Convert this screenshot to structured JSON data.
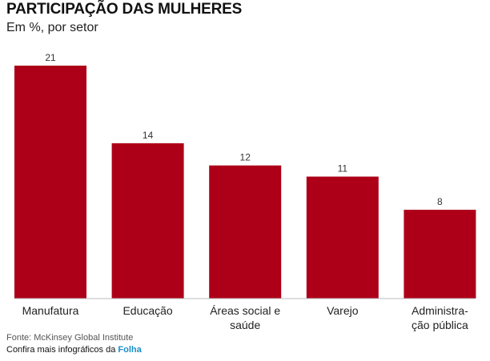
{
  "header": {
    "title": "PARTICIPAÇÃO DAS MULHERES",
    "subtitle": "Em %, por setor"
  },
  "chart_data": {
    "type": "bar",
    "title": "PARTICIPAÇÃO DAS MULHERES",
    "subtitle": "Em %, por setor",
    "categories": [
      [
        "Manufatura"
      ],
      [
        "Educação"
      ],
      [
        "Áreas social e",
        "saúde"
      ],
      [
        "Varejo"
      ],
      [
        "Administra-",
        "ção pública"
      ]
    ],
    "values": [
      21,
      14,
      12,
      11,
      8
    ],
    "ylim": [
      0,
      21
    ],
    "grid": false,
    "bar_color": "#ad0018"
  },
  "footer": {
    "source": "Fonte: McKinsey Global Institute",
    "promo_text": "Confira mais infográficos da ",
    "promo_brand": "Folha",
    "brand_color": "#1a8fc9"
  }
}
